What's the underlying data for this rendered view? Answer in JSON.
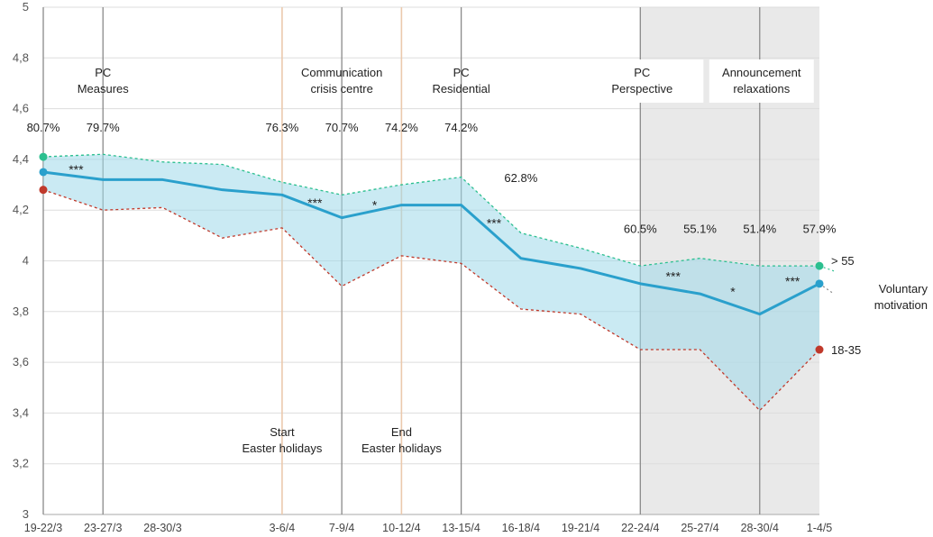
{
  "chart_data": {
    "type": "line",
    "ylim": [
      3,
      5
    ],
    "yticks": [
      3,
      3.2,
      3.4,
      3.6,
      3.8,
      4,
      4.2,
      4.4,
      4.6,
      4.8,
      5
    ],
    "ytick_labels": [
      "3",
      "3,2",
      "3,4",
      "3,6",
      "3,8",
      "4",
      "4,2",
      "4,4",
      "4,6",
      "4,8",
      "5"
    ],
    "categories": [
      "19-22/3",
      "23-27/3",
      "28-30/3",
      "",
      "3-6/4",
      "7-9/4",
      "10-12/4",
      "13-15/4",
      "16-18/4",
      "19-21/4",
      "22-24/4",
      "25-27/4",
      "28-30/4",
      "1-4/5"
    ],
    "series": [
      {
        "name": "Voluntary motivation",
        "role": "mean",
        "color": "#2aa0cc",
        "values": [
          4.35,
          4.32,
          4.32,
          4.28,
          4.26,
          4.17,
          4.22,
          4.22,
          4.01,
          3.97,
          3.91,
          3.87,
          3.79,
          3.91
        ]
      },
      {
        "name": "> 55",
        "role": "upper",
        "color": "#2bbf8f",
        "values": [
          4.41,
          4.42,
          4.39,
          4.38,
          4.31,
          4.26,
          4.3,
          4.33,
          4.11,
          4.05,
          3.98,
          4.01,
          3.98,
          3.98
        ]
      },
      {
        "name": "18-35",
        "role": "lower",
        "color": "#c0392b",
        "values": [
          4.28,
          4.2,
          4.21,
          4.09,
          4.13,
          3.9,
          4.02,
          3.99,
          3.81,
          3.79,
          3.65,
          3.65,
          3.41,
          3.65
        ]
      }
    ],
    "end_tails": {
      "upper": 3.96,
      "mean": 3.87
    },
    "shaded_region": {
      "from_index": 10,
      "to_index": 13
    },
    "gridlines": true,
    "events": [
      {
        "position": 0,
        "lines": [
          "PC",
          "Measures"
        ],
        "line_color": "#888888",
        "label_pos": "top",
        "index_label": 1
      },
      {
        "position": 5,
        "lines": [
          "Communication",
          "crisis centre"
        ],
        "line_color": "#888888",
        "label_pos": "top"
      },
      {
        "position": 7,
        "lines": [
          "PC",
          "Residential"
        ],
        "line_color": "#888888",
        "label_pos": "top"
      },
      {
        "position": 10,
        "lines": [
          "PC",
          "Perspective"
        ],
        "line_color": "#888888",
        "label_pos": "top",
        "boxed": true
      },
      {
        "position": 12,
        "lines": [
          "Announcement",
          "relaxations"
        ],
        "line_color": "#888888",
        "label_pos": "top",
        "boxed": true
      },
      {
        "position": 4,
        "lines": [
          "Start",
          "Easter holidays"
        ],
        "line_color": "#e8c8b0",
        "label_pos": "bottom"
      },
      {
        "position": 6,
        "lines": [
          "End",
          "Easter holidays"
        ],
        "line_color": "#e8c8b0",
        "label_pos": "bottom"
      }
    ],
    "vlines_gray": [
      0,
      1,
      5,
      7,
      10,
      12
    ],
    "vlines_peach": [
      4,
      6
    ],
    "percent_labels": [
      {
        "text": "80.7%",
        "index": 0,
        "y": 4.51
      },
      {
        "text": "79.7%",
        "index": 1,
        "y": 4.51
      },
      {
        "text": "76.3%",
        "index": 4,
        "y": 4.51
      },
      {
        "text": "70.7%",
        "index": 5,
        "y": 4.51
      },
      {
        "text": "74.2%",
        "index": 6,
        "y": 4.51
      },
      {
        "text": "74.2%",
        "index": 7,
        "y": 4.51
      },
      {
        "text": "62.8%",
        "index": 8,
        "y": 4.31
      },
      {
        "text": "60.5%",
        "index": 10,
        "y": 4.11
      },
      {
        "text": "55.1%",
        "index": 11,
        "y": 4.11
      },
      {
        "text": "51.4%",
        "index": 12,
        "y": 4.11
      },
      {
        "text": "57.9%",
        "index": 13,
        "y": 4.11
      }
    ],
    "significance": [
      {
        "text": "***",
        "x": 0.55,
        "y": 4.36
      },
      {
        "text": "***",
        "x": 4.55,
        "y": 4.23
      },
      {
        "text": "*",
        "x": 5.55,
        "y": 4.22
      },
      {
        "text": "***",
        "x": 7.55,
        "y": 4.15
      },
      {
        "text": "***",
        "x": 10.55,
        "y": 3.94
      },
      {
        "text": "*",
        "x": 11.55,
        "y": 3.88
      },
      {
        "text": "***",
        "x": 12.55,
        "y": 3.92
      }
    ],
    "series_labels": [
      {
        "lines": [
          ">",
          "55"
        ],
        "text": "> 55",
        "series": "upper"
      },
      {
        "lines": [
          "Voluntary",
          "motivation"
        ],
        "series": "mean"
      },
      {
        "text": "18-35",
        "series": "lower"
      }
    ]
  }
}
